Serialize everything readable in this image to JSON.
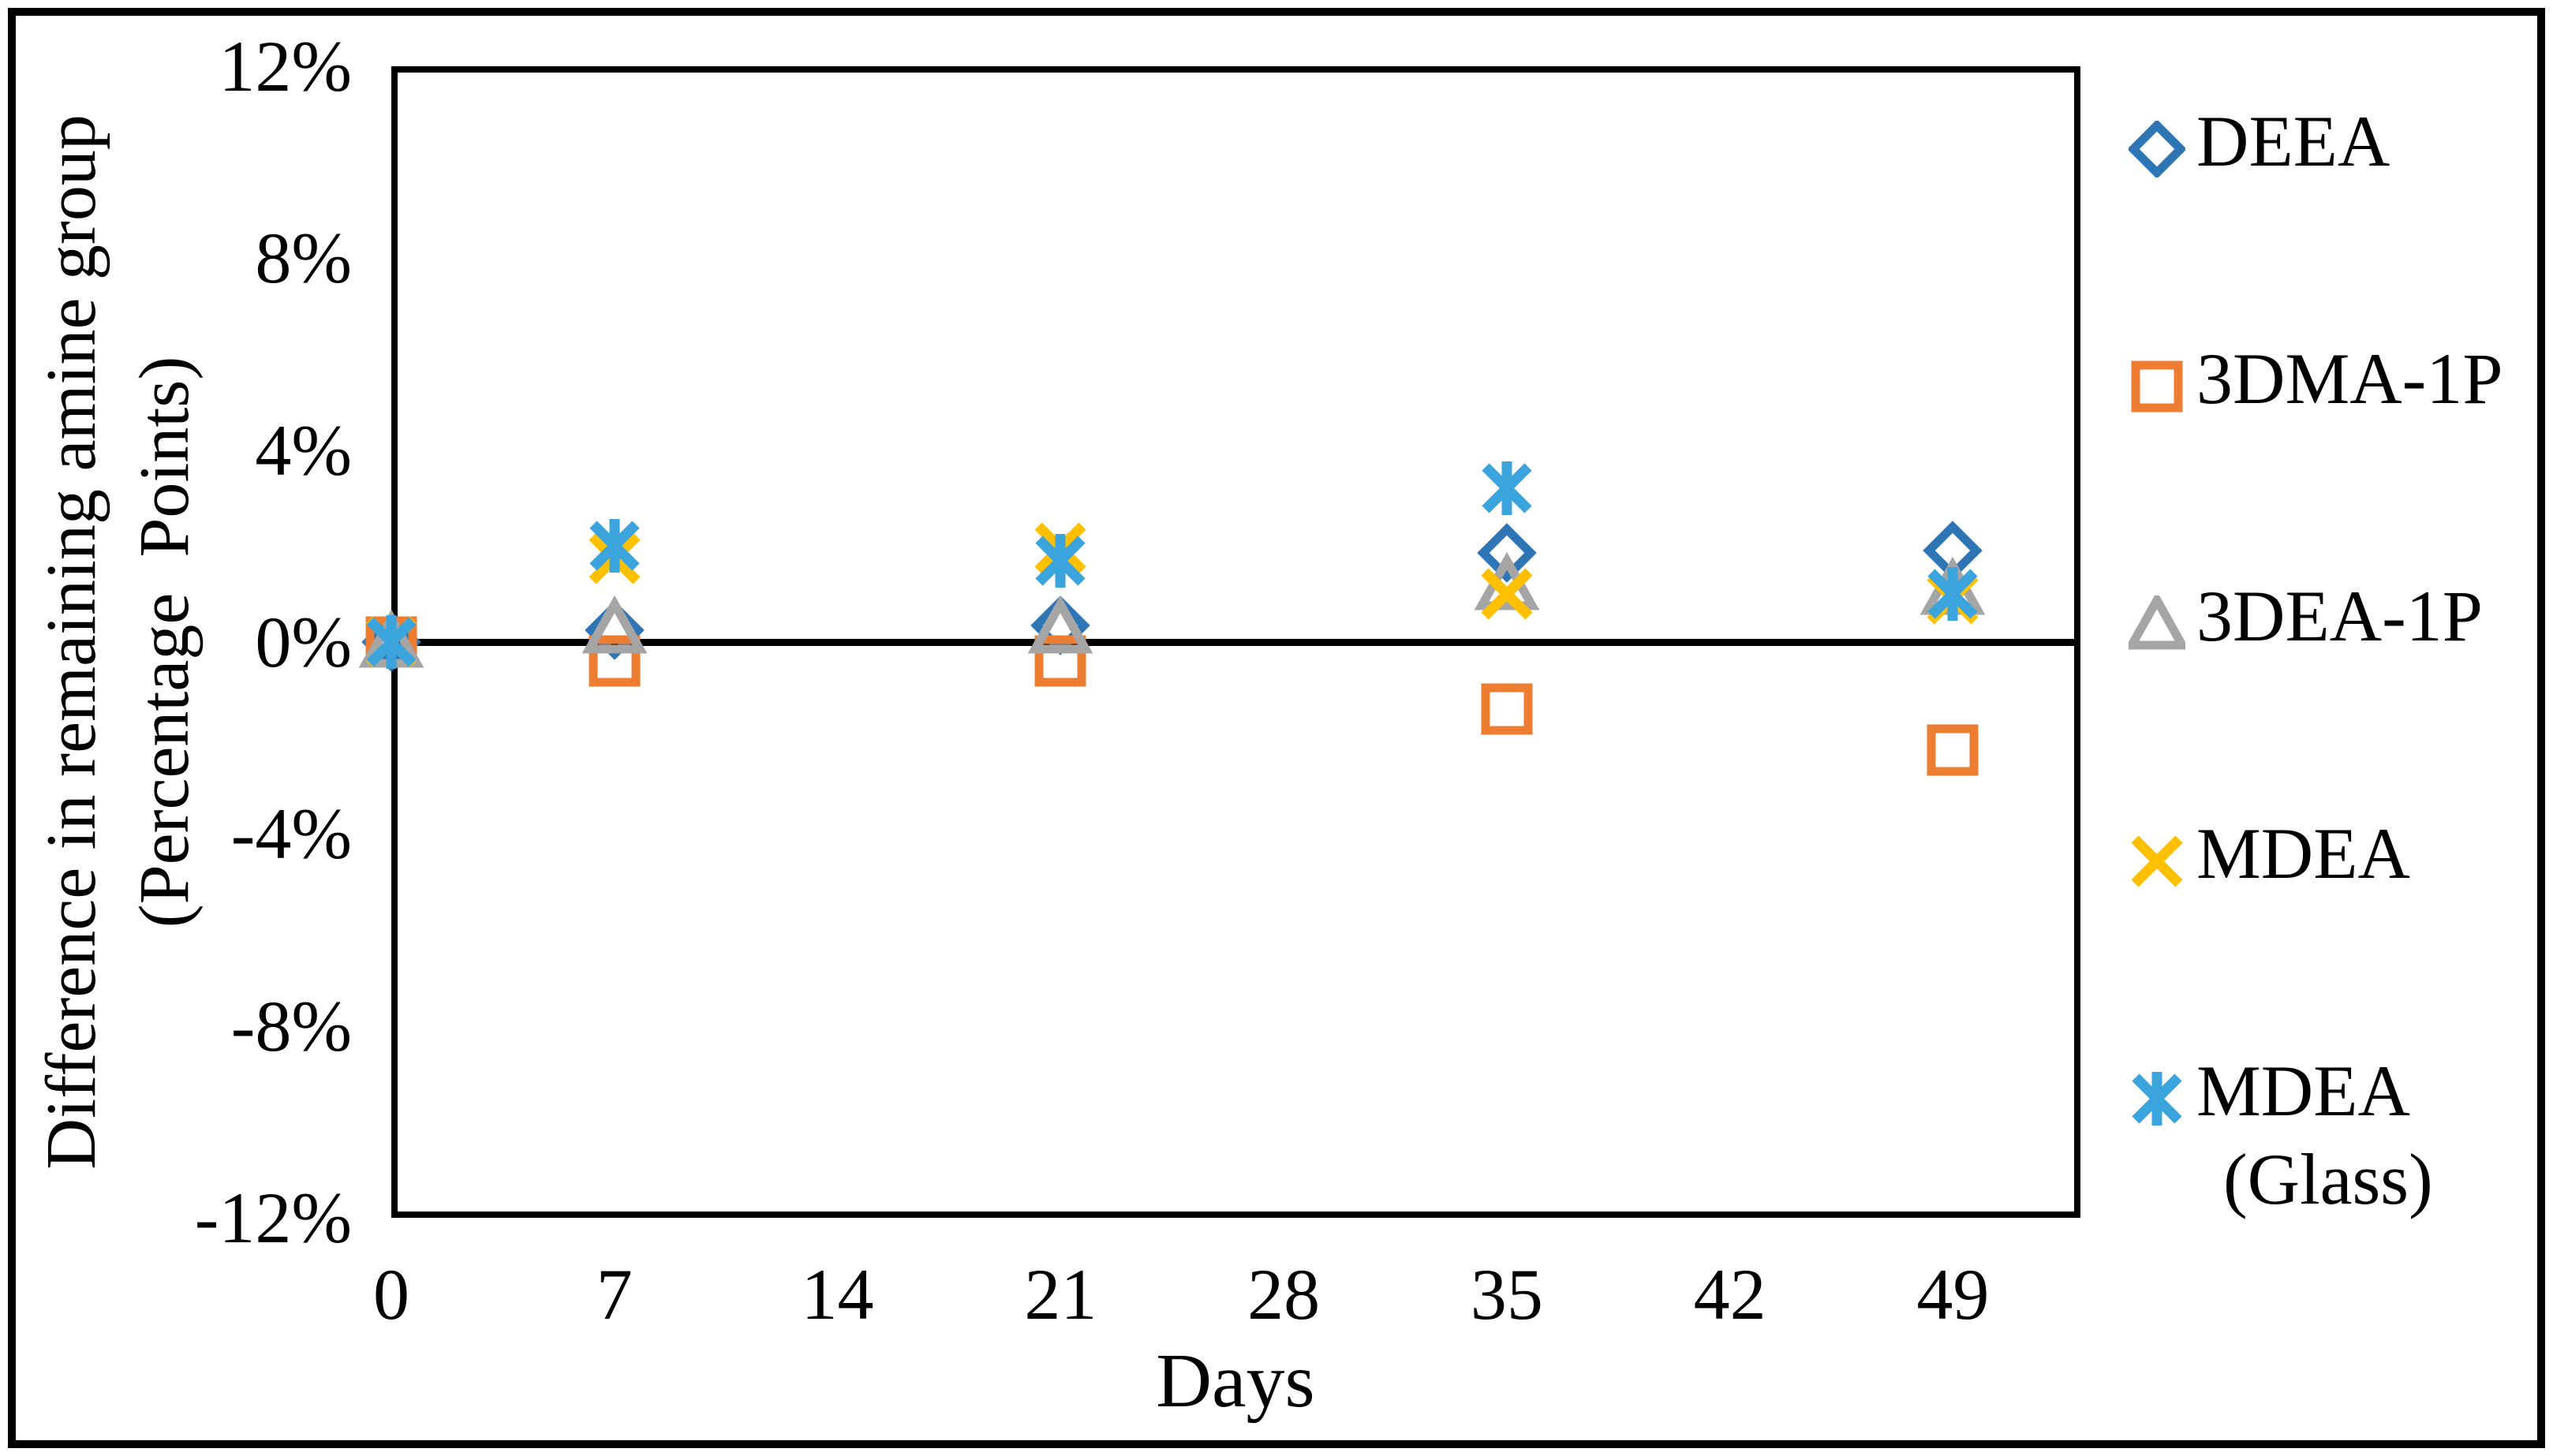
{
  "figure": {
    "xlabel": "Days",
    "ylabel_display": "Difference in remaining amine group\n(Percentage  Points)"
  },
  "chart_data": {
    "type": "scatter",
    "title": "",
    "xlabel": "Days",
    "ylabel": "Difference in remaining amine group (Percentage Points)",
    "y_unit": "percentage points",
    "xlim": [
      0,
      53
    ],
    "ylim": [
      -12,
      12
    ],
    "x_ticks": [
      0,
      7,
      14,
      21,
      28,
      35,
      42,
      49
    ],
    "y_ticks": [
      {
        "value": 12,
        "label": "12%"
      },
      {
        "value": 8,
        "label": "8%"
      },
      {
        "value": 4,
        "label": "4%"
      },
      {
        "value": 0,
        "label": "0%"
      },
      {
        "value": -4,
        "label": "-4%"
      },
      {
        "value": -8,
        "label": "-8%"
      },
      {
        "value": -12,
        "label": "-12%"
      }
    ],
    "grid": false,
    "zero_line": true,
    "legend_position": "right-outside",
    "x": [
      0,
      7,
      21,
      35,
      49
    ],
    "series": [
      {
        "name": "DEEA",
        "legend_lines": [
          "DEEA"
        ],
        "marker": "diamond",
        "color": "#2E75B6",
        "values": [
          0,
          0.25,
          0.35,
          1.85,
          1.9
        ]
      },
      {
        "name": "3DMA-1P",
        "legend_lines": [
          "3DMA-1P"
        ],
        "marker": "square",
        "color": "#ED7D31",
        "values": [
          0,
          -0.4,
          -0.4,
          -1.4,
          -2.25
        ]
      },
      {
        "name": "3DEA-1P",
        "legend_lines": [
          "3DEA-1P"
        ],
        "marker": "triangle",
        "color": "#A5A5A5",
        "values": [
          0,
          0.3,
          0.3,
          1.2,
          1.1
        ]
      },
      {
        "name": "MDEA",
        "legend_lines": [
          "MDEA"
        ],
        "marker": "x",
        "color": "#FFC000",
        "values": [
          0,
          1.75,
          1.95,
          1.0,
          0.9
        ]
      },
      {
        "name": "MDEA (Glass)",
        "legend_lines": [
          "MDEA",
          "(Glass)"
        ],
        "marker": "asterisk",
        "color": "#3BA4DC",
        "values": [
          0,
          2.0,
          1.7,
          3.2,
          1.0
        ]
      }
    ]
  }
}
